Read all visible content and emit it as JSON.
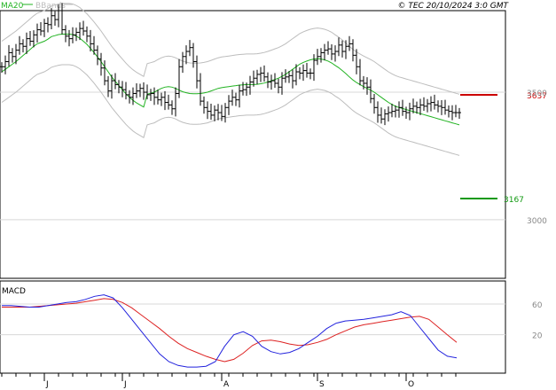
{
  "header": {
    "ma_label": "MA20",
    "bb_label": "BBands",
    "copyright": "© TEC 20/10/2024 3:0 GMT"
  },
  "colors": {
    "ma": "#22b322",
    "bbands": "#bdbdbd",
    "bars": "#000000",
    "macd": "#2222dd",
    "signal": "#dd2222",
    "resistance": "#cc0000",
    "support": "#119911",
    "grid": "#d8d8d8"
  },
  "chart_data": [
    {
      "type": "ohlc",
      "ylim": [
        2770,
        3820
      ],
      "yticks": [
        3000,
        3500
      ],
      "ytick_labels": [
        "3000",
        "3500"
      ],
      "x": [
        1,
        2,
        3,
        4,
        5,
        6,
        7,
        8,
        9,
        10,
        11,
        12,
        13,
        14,
        15,
        16,
        17,
        18,
        19,
        20,
        21,
        22,
        23,
        24,
        25,
        26,
        27,
        28,
        29,
        30,
        31,
        32,
        33,
        34,
        35,
        36,
        37,
        38,
        39,
        40,
        41,
        42,
        43,
        44,
        45,
        46,
        47,
        48,
        49,
        50,
        51,
        52,
        53,
        54,
        55,
        56,
        57,
        58,
        59,
        60,
        61,
        62,
        63,
        64,
        65,
        66,
        67,
        68,
        69,
        70,
        71,
        72,
        73,
        74,
        75,
        76,
        77,
        78,
        79,
        80,
        81,
        82,
        83,
        84,
        85,
        86,
        87,
        88,
        89,
        90,
        91,
        92,
        93,
        94,
        95,
        96,
        97,
        98,
        99,
        100,
        101,
        102,
        103,
        104,
        105,
        106,
        107,
        108,
        109,
        110,
        111,
        112,
        113,
        114,
        115,
        116,
        117,
        118,
        119,
        120,
        121,
        122,
        123,
        124,
        125,
        126,
        127,
        128,
        129,
        130
      ],
      "close": [
        3600,
        3620,
        3655,
        3640,
        3665,
        3690,
        3680,
        3710,
        3700,
        3725,
        3745,
        3740,
        3770,
        3765,
        3800,
        3785,
        3820,
        3745,
        3720,
        3710,
        3725,
        3735,
        3750,
        3740,
        3720,
        3690,
        3665,
        3630,
        3595,
        3545,
        3505,
        3545,
        3530,
        3520,
        3510,
        3490,
        3480,
        3495,
        3505,
        3515,
        3500,
        3490,
        3495,
        3480,
        3470,
        3480,
        3460,
        3450,
        3435,
        3495,
        3600,
        3640,
        3660,
        3675,
        3620,
        3545,
        3465,
        3440,
        3425,
        3410,
        3430,
        3420,
        3405,
        3440,
        3465,
        3480,
        3470,
        3505,
        3510,
        3520,
        3540,
        3555,
        3570,
        3575,
        3560,
        3540,
        3545,
        3535,
        3520,
        3555,
        3560,
        3565,
        3545,
        3580,
        3575,
        3585,
        3575,
        3575,
        3625,
        3640,
        3655,
        3665,
        3670,
        3650,
        3660,
        3685,
        3660,
        3680,
        3690,
        3645,
        3600,
        3545,
        3535,
        3520,
        3475,
        3440,
        3410,
        3395,
        3415,
        3420,
        3425,
        3430,
        3440,
        3425,
        3420,
        3435,
        3445,
        3440,
        3450,
        3445,
        3455,
        3460,
        3450,
        3445,
        3440,
        3430,
        3425,
        3420,
        3420,
        3420
      ],
      "ma20": [
        3580,
        3590,
        3600,
        3610,
        3620,
        3632,
        3644,
        3656,
        3668,
        3680,
        3690,
        3695,
        3700,
        3708,
        3718,
        3722,
        3726,
        3728,
        3728,
        3728,
        3726,
        3720,
        3712,
        3700,
        3688,
        3672,
        3656,
        3638,
        3620,
        3600,
        3580,
        3560,
        3543,
        3526,
        3510,
        3494,
        3480,
        3468,
        3458,
        3450,
        3442,
        3492,
        3496,
        3500,
        3508,
        3515,
        3520,
        3522,
        3520,
        3515,
        3508,
        3502,
        3498,
        3495,
        3494,
        3494,
        3495,
        3497,
        3500,
        3505,
        3510,
        3515,
        3518,
        3520,
        3522,
        3524,
        3526,
        3528,
        3529,
        3530,
        3530,
        3530,
        3531,
        3533,
        3536,
        3540,
        3545,
        3550,
        3555,
        3562,
        3570,
        3580,
        3590,
        3600,
        3610,
        3617,
        3622,
        3627,
        3630,
        3632,
        3630,
        3627,
        3622,
        3615,
        3605,
        3596,
        3585,
        3573,
        3560,
        3548,
        3538,
        3530,
        3522,
        3515,
        3508,
        3500,
        3490,
        3480,
        3470,
        3460,
        3452,
        3445,
        3440,
        3436,
        3432,
        3428,
        3424,
        3420,
        3416,
        3412,
        3408,
        3404,
        3400,
        3396,
        3392,
        3388,
        3384,
        3380,
        3376,
        3372
      ]
    },
    {
      "type": "line",
      "title": "MACD",
      "ylim": [
        -30,
        90
      ],
      "yticks": [
        60,
        20
      ],
      "ytick_labels": [
        "60",
        "20"
      ],
      "series": [
        {
          "values": [
            58,
            58,
            57,
            56,
            56,
            58,
            60,
            62,
            63,
            66,
            70,
            72,
            68,
            55,
            40,
            25,
            10,
            -5,
            -15,
            -20,
            -22,
            -22,
            -21,
            -15,
            5,
            20,
            24,
            18,
            5,
            -2,
            -5,
            -3,
            2,
            10,
            18,
            28,
            35,
            38,
            39,
            40,
            42,
            44,
            46,
            50,
            45,
            30,
            15,
            0,
            -8,
            -10
          ]
        },
        {
          "values": [
            56,
            56,
            56,
            56,
            57,
            58,
            59,
            60,
            61,
            63,
            65,
            67,
            66,
            62,
            55,
            46,
            37,
            28,
            18,
            9,
            2,
            -3,
            -8,
            -12,
            -15,
            -12,
            -4,
            6,
            12,
            13,
            11,
            8,
            6,
            7,
            10,
            14,
            20,
            25,
            30,
            33,
            35,
            37,
            39,
            41,
            43,
            44,
            40,
            30,
            20,
            10
          ]
        }
      ]
    }
  ],
  "levels": {
    "resistance_label": "3637",
    "support_label": "3167"
  },
  "x_axis": {
    "labels": [
      "J",
      "J",
      "A",
      "S",
      "O"
    ],
    "positions": [
      12,
      34,
      62,
      89,
      114
    ]
  }
}
